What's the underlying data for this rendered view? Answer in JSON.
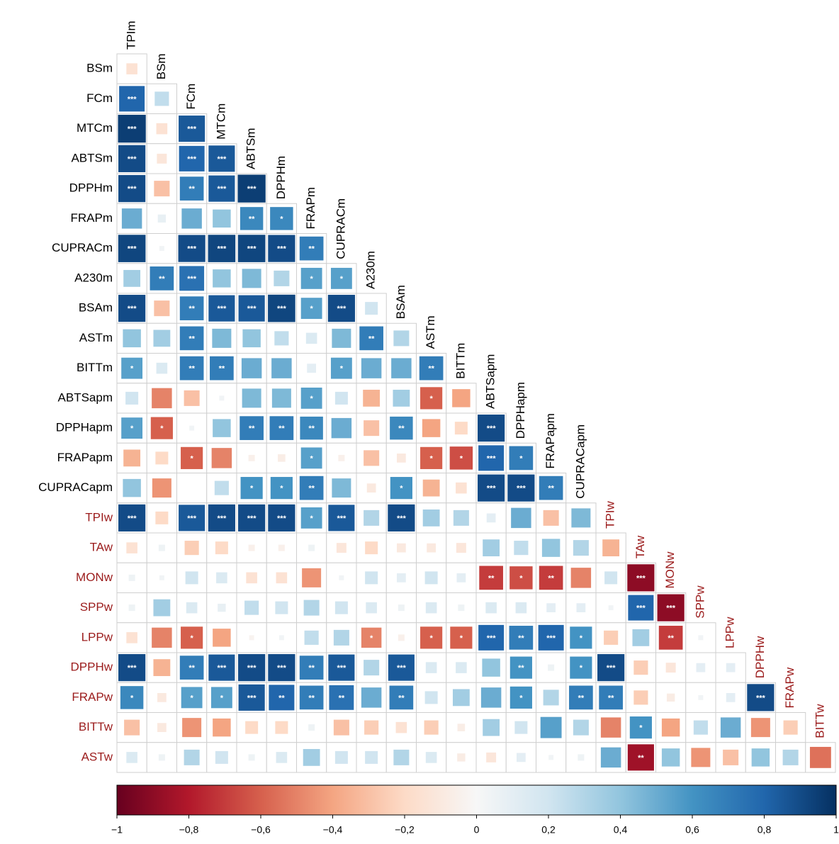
{
  "chart_data": {
    "type": "corrplot",
    "columns": [
      "TPIm",
      "BSm",
      "FCm",
      "MTCm",
      "ABTSm",
      "DPPHm",
      "FRAPm",
      "CUPRACm",
      "A230m",
      "BSAm",
      "ASTm",
      "BITTm",
      "ABTSapm",
      "DPPHapm",
      "FRAPapm",
      "CUPRACapm",
      "TPIw",
      "TAw",
      "MONw",
      "SPPw",
      "LPPw",
      "DPPHw",
      "FRAPw",
      "BITTw"
    ],
    "column_colors": [
      "#000",
      "#000",
      "#000",
      "#000",
      "#000",
      "#000",
      "#000",
      "#000",
      "#000",
      "#000",
      "#000",
      "#000",
      "#000",
      "#000",
      "#000",
      "#000",
      "#9b1b1b",
      "#9b1b1b",
      "#9b1b1b",
      "#9b1b1b",
      "#9b1b1b",
      "#9b1b1b",
      "#9b1b1b",
      "#9b1b1b"
    ],
    "rows": [
      "BSm",
      "FCm",
      "MTCm",
      "ABTSm",
      "DPPHm",
      "FRAPm",
      "CUPRACm",
      "A230m",
      "BSAm",
      "ASTm",
      "BITTm",
      "ABTSapm",
      "DPPHapm",
      "FRAPapm",
      "CUPRACapm",
      "TPIw",
      "TAw",
      "MONw",
      "SPPw",
      "LPPw",
      "DPPHw",
      "FRAPw",
      "BITTw",
      "ASTw"
    ],
    "row_colors": [
      "#000",
      "#000",
      "#000",
      "#000",
      "#000",
      "#000",
      "#000",
      "#000",
      "#000",
      "#000",
      "#000",
      "#000",
      "#000",
      "#000",
      "#000",
      "#9b1b1b",
      "#9b1b1b",
      "#9b1b1b",
      "#9b1b1b",
      "#9b1b1b",
      "#9b1b1b",
      "#9b1b1b",
      "#9b1b1b",
      "#9b1b1b"
    ],
    "values": [
      [
        -0.15
      ],
      [
        0.8,
        0.25
      ],
      [
        0.95,
        -0.15,
        0.85
      ],
      [
        0.9,
        -0.12,
        0.8,
        0.85
      ],
      [
        0.9,
        -0.3,
        0.7,
        0.85,
        0.95
      ],
      [
        0.5,
        0.08,
        0.5,
        0.4,
        0.65,
        0.65
      ],
      [
        0.92,
        0.03,
        0.9,
        0.92,
        0.92,
        0.9,
        0.7
      ],
      [
        0.35,
        0.7,
        0.75,
        0.4,
        0.45,
        0.3,
        0.55,
        0.55
      ],
      [
        0.9,
        -0.3,
        0.7,
        0.85,
        0.85,
        0.92,
        0.55,
        0.9,
        0.2
      ],
      [
        0.4,
        0.35,
        0.7,
        0.45,
        0.4,
        0.25,
        0.15,
        0.45,
        0.7,
        0.3
      ],
      [
        0.55,
        0.15,
        0.7,
        0.7,
        0.5,
        0.5,
        0.1,
        0.55,
        0.5,
        0.5,
        0.7
      ],
      [
        0.2,
        -0.5,
        -0.3,
        0.03,
        0.45,
        0.45,
        0.55,
        0.2,
        -0.35,
        0.35,
        -0.6,
        -0.4
      ],
      [
        0.55,
        -0.6,
        0.03,
        0.4,
        0.7,
        0.7,
        0.65,
        0.5,
        -0.3,
        0.65,
        -0.4,
        -0.2,
        0.9
      ],
      [
        -0.35,
        -0.2,
        -0.6,
        -0.5,
        -0.05,
        -0.07,
        0.55,
        -0.05,
        -0.3,
        -0.1,
        -0.6,
        -0.65,
        0.8,
        0.7
      ],
      [
        0.4,
        -0.45,
        0.0,
        0.25,
        0.6,
        0.6,
        0.7,
        0.45,
        -0.1,
        0.6,
        -0.35,
        -0.15,
        0.9,
        0.9,
        0.7
      ],
      [
        0.9,
        -0.2,
        0.85,
        0.9,
        0.9,
        0.9,
        0.55,
        0.85,
        0.3,
        0.9,
        0.35,
        0.3,
        0.1,
        0.5,
        -0.3,
        0.45
      ],
      [
        -0.15,
        0.05,
        -0.25,
        -0.2,
        -0.05,
        -0.05,
        0.05,
        -0.12,
        -0.2,
        -0.1,
        -0.1,
        -0.12,
        0.35,
        0.25,
        0.4,
        0.3,
        -0.35
      ],
      [
        0.05,
        0.03,
        0.2,
        0.15,
        -0.15,
        -0.15,
        -0.45,
        0.03,
        0.2,
        0.1,
        0.2,
        0.1,
        -0.7,
        -0.65,
        -0.7,
        -0.5,
        0.2,
        -0.9
      ],
      [
        0.05,
        0.35,
        0.15,
        0.08,
        0.25,
        0.2,
        0.3,
        0.2,
        0.15,
        0.05,
        0.15,
        0.05,
        0.15,
        0.15,
        0.1,
        0.1,
        0.03,
        0.8,
        -0.9
      ],
      [
        -0.15,
        -0.5,
        -0.6,
        -0.4,
        -0.03,
        0.03,
        0.25,
        0.3,
        -0.5,
        -0.05,
        -0.6,
        -0.6,
        0.8,
        0.7,
        0.8,
        0.6,
        -0.25,
        0.35,
        -0.7,
        0.03
      ],
      [
        0.9,
        -0.35,
        0.7,
        0.85,
        0.9,
        0.9,
        0.7,
        0.85,
        0.3,
        0.85,
        0.15,
        0.15,
        0.4,
        0.6,
        0.05,
        0.6,
        0.9,
        -0.25,
        -0.12,
        0.1,
        0.1
      ],
      [
        0.65,
        -0.1,
        0.55,
        0.55,
        0.85,
        0.8,
        0.7,
        0.75,
        0.5,
        0.7,
        0.2,
        0.35,
        0.5,
        0.6,
        0.3,
        0.7,
        0.7,
        -0.25,
        -0.08,
        0.03,
        0.1,
        0.9
      ],
      [
        -0.3,
        -0.1,
        -0.45,
        -0.4,
        -0.2,
        -0.2,
        0.05,
        -0.3,
        -0.25,
        -0.15,
        -0.25,
        -0.07,
        0.35,
        0.2,
        0.55,
        0.3,
        -0.5,
        0.6,
        -0.4,
        0.25,
        0.5,
        -0.45,
        -0.25
      ],
      [
        0.15,
        0.05,
        0.3,
        0.2,
        0.05,
        0.15,
        0.35,
        0.2,
        0.2,
        0.3,
        0.15,
        -0.08,
        -0.12,
        0.1,
        0.03,
        0.05,
        0.5,
        -0.85,
        0.4,
        -0.45,
        -0.3,
        0.4,
        0.3,
        -0.55
      ]
    ],
    "stars": [
      [
        null
      ],
      [
        "***",
        null
      ],
      [
        "***",
        null,
        "***"
      ],
      [
        "***",
        null,
        "***",
        "***"
      ],
      [
        "***",
        null,
        "**",
        "***",
        "***"
      ],
      [
        null,
        null,
        null,
        null,
        "**",
        "*"
      ],
      [
        "***",
        null,
        "***",
        "***",
        "***",
        "***",
        "**"
      ],
      [
        null,
        "**",
        "***",
        null,
        null,
        null,
        "*",
        "*"
      ],
      [
        "***",
        null,
        "**",
        "***",
        "***",
        "***",
        "*",
        "***",
        null
      ],
      [
        null,
        null,
        "**",
        null,
        null,
        null,
        null,
        null,
        "**",
        null
      ],
      [
        "*",
        null,
        "**",
        "**",
        null,
        null,
        null,
        "*",
        null,
        null,
        "**"
      ],
      [
        null,
        null,
        null,
        null,
        null,
        null,
        "*",
        null,
        null,
        null,
        "*",
        null
      ],
      [
        "*",
        "*",
        null,
        null,
        "**",
        "**",
        "**",
        null,
        null,
        "**",
        null,
        null,
        "***"
      ],
      [
        null,
        null,
        "*",
        null,
        null,
        null,
        "*",
        null,
        null,
        null,
        "*",
        "*",
        "***",
        "*"
      ],
      [
        null,
        null,
        null,
        null,
        "*",
        "*",
        "**",
        null,
        null,
        "*",
        null,
        null,
        "***",
        "***",
        "**"
      ],
      [
        "***",
        null,
        "***",
        "***",
        "***",
        "***",
        "*",
        "***",
        null,
        "***",
        null,
        null,
        null,
        null,
        null,
        null
      ],
      [
        null,
        null,
        null,
        null,
        null,
        null,
        null,
        null,
        null,
        null,
        null,
        null,
        null,
        null,
        null,
        null,
        null
      ],
      [
        null,
        null,
        null,
        null,
        null,
        null,
        null,
        null,
        null,
        null,
        null,
        null,
        "**",
        "*",
        "**",
        null,
        null,
        "***"
      ],
      [
        null,
        null,
        null,
        null,
        null,
        null,
        null,
        null,
        null,
        null,
        null,
        null,
        null,
        null,
        null,
        null,
        null,
        "***",
        "***"
      ],
      [
        null,
        null,
        "*",
        null,
        null,
        null,
        null,
        null,
        "*",
        null,
        "*",
        "*",
        "***",
        "**",
        "***",
        "*",
        null,
        null,
        "**",
        null
      ],
      [
        "***",
        null,
        "**",
        "***",
        "***",
        "***",
        "**",
        "***",
        null,
        "***",
        null,
        null,
        null,
        "**",
        null,
        "*",
        "***",
        null,
        null,
        null,
        null
      ],
      [
        "*",
        null,
        "*",
        "*",
        "***",
        "**",
        "**",
        "**",
        null,
        "**",
        null,
        null,
        null,
        "*",
        null,
        "**",
        "**",
        null,
        null,
        null,
        null,
        "***"
      ],
      [
        null,
        null,
        null,
        null,
        null,
        null,
        null,
        null,
        null,
        null,
        null,
        null,
        null,
        null,
        null,
        null,
        null,
        "*",
        null,
        null,
        null,
        null,
        null
      ],
      [
        null,
        null,
        null,
        null,
        null,
        null,
        null,
        null,
        null,
        null,
        null,
        null,
        null,
        null,
        null,
        null,
        null,
        "**",
        null,
        null,
        null,
        null,
        null,
        null
      ]
    ],
    "colormap": [
      "#67001f",
      "#b2182b",
      "#d6604d",
      "#f4a582",
      "#fddbc7",
      "#f7f7f7",
      "#d1e5f0",
      "#92c5de",
      "#4393c3",
      "#2166ac",
      "#053061"
    ],
    "clim": [
      -1,
      1
    ],
    "cticks": [
      {
        "value": -1,
        "label": "−1"
      },
      {
        "value": -0.8,
        "label": "−0,8"
      },
      {
        "value": -0.6,
        "label": "−0,6"
      },
      {
        "value": -0.4,
        "label": "−0,4"
      },
      {
        "value": -0.2,
        "label": "−0,2"
      },
      0,
      {
        "value": 0.2,
        "label": "0,2"
      },
      {
        "value": 0.4,
        "label": "0,4"
      },
      {
        "value": 0.6,
        "label": "0,6"
      },
      {
        "value": 0.8,
        "label": "0,8"
      },
      1
    ]
  }
}
